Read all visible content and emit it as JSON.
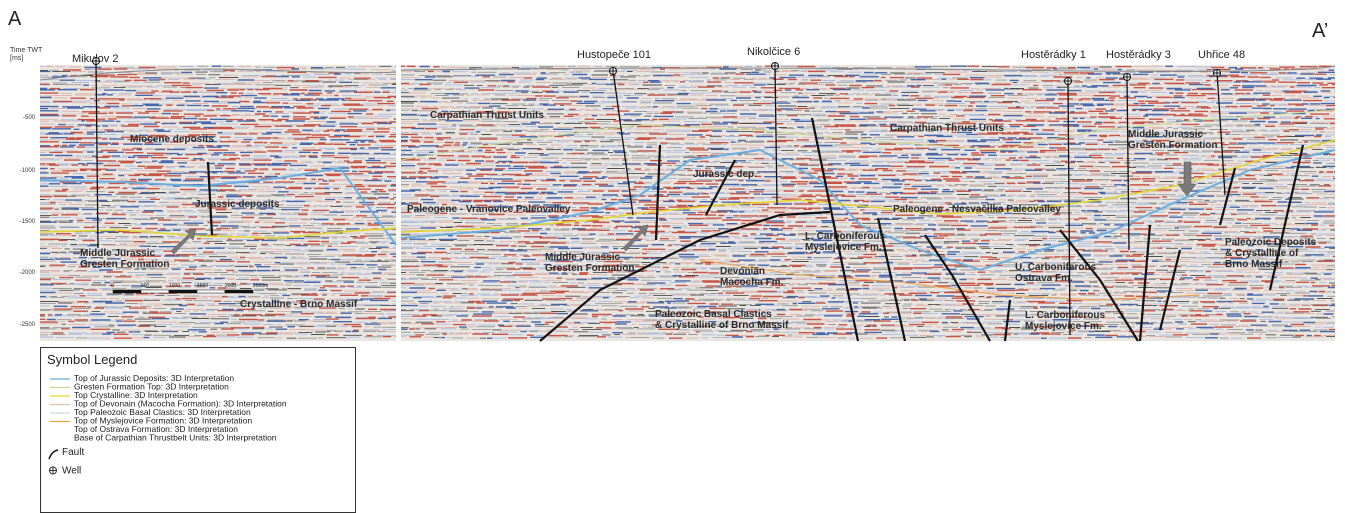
{
  "section": {
    "start_label": "A",
    "end_label": "A’",
    "y_axis": {
      "title": "Time TWT",
      "unit": "[ms]",
      "ticks": [
        -500,
        -1000,
        -1500,
        -2000,
        -2500
      ]
    },
    "wells": [
      {
        "label": "Mikulov 2"
      },
      {
        "label": "Hustopeče 101"
      },
      {
        "label": "Nikolčice 6"
      },
      {
        "label": "Hostěrádky 1"
      },
      {
        "label": "Hostěrádky 3"
      },
      {
        "label": "Uhřice 48"
      }
    ],
    "annotations": [
      {
        "lines": [
          "Miocene deposits"
        ]
      },
      {
        "lines": [
          "Jurassic deposits"
        ]
      },
      {
        "lines": [
          "Middle Jurassic",
          "Gresten Formation"
        ]
      },
      {
        "lines": [
          "Crystalline - Brno Massif"
        ]
      },
      {
        "lines": [
          "Carpathian Thrust Units"
        ]
      },
      {
        "lines": [
          "Carpathian Thrust Units"
        ]
      },
      {
        "lines": [
          "Jurassic dep."
        ]
      },
      {
        "lines": [
          "Middle Jurassic",
          "Gresten Formation"
        ]
      },
      {
        "lines": [
          "Paleogene - Vranovice Paleovalley"
        ]
      },
      {
        "lines": [
          "Paleogene - Nesvačilka Paleovalley"
        ]
      },
      {
        "lines": [
          "L. Carboniferous",
          "Myslejovice Fm."
        ]
      },
      {
        "lines": [
          "Middle Jurassic",
          "Gresten Formation"
        ]
      },
      {
        "lines": [
          "Devonian",
          "Macocha Fm."
        ]
      },
      {
        "lines": [
          "U. Carboniferous",
          "Ostrava Fm."
        ]
      },
      {
        "lines": [
          "Paleozoic Deposits",
          "& Crystalline of",
          "Brno Massif"
        ]
      },
      {
        "lines": [
          "Paleozoic Basal Clastics",
          "& Crystalline of Brno Massif"
        ]
      },
      {
        "lines": [
          "L. Carboniferous",
          "Myslejovice Fm."
        ]
      }
    ],
    "scale_bar": {
      "labels": [
        "0",
        "500",
        "1000",
        "1500",
        "2000",
        "2500m"
      ]
    }
  },
  "legend": {
    "title": "Symbol Legend",
    "items": [
      {
        "label": "Top of Jurassic Deposits: 3D Interpretation",
        "color": "#6aaee0"
      },
      {
        "label": "Gresten Formation Top: 3D Interpretation",
        "color": "#c8d890"
      },
      {
        "label": "Top Crystalline: 3D Interpretation",
        "color": "#e2d52a"
      },
      {
        "label": "Top of Devonain (Macocha Formation): 3D Interpretation",
        "color": "#d9c4a8"
      },
      {
        "label": "Top Paleozoic Basal Clastics: 3D Interpretation",
        "color": "#cfd6dc"
      },
      {
        "label": "Top of Myslejovice Formation: 3D Interpretation",
        "color": "#f0a040"
      },
      {
        "label": "Top of Ostrava Formation: 3D Interpretation",
        "color": "#ffffff"
      },
      {
        "label": "Base of Carpathian Thrustbelt Units: 3D Interpretation",
        "color": "#ffffff"
      },
      {
        "label": "Fault"
      },
      {
        "label": "Well"
      }
    ]
  }
}
